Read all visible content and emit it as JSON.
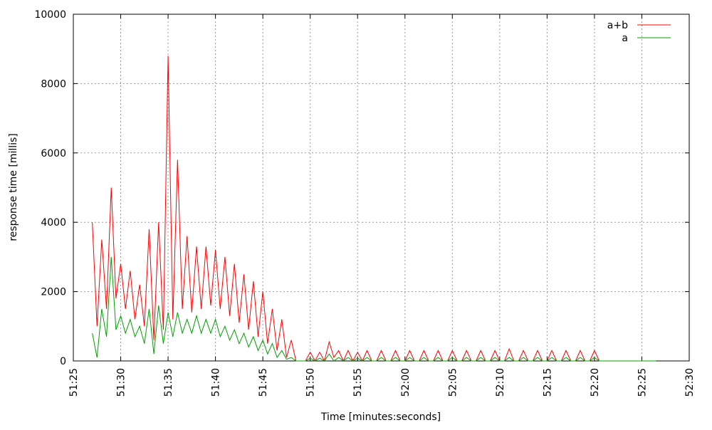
{
  "chart_data": {
    "type": "line",
    "xlabel": "Time [minutes:seconds]",
    "ylabel": "response time [millis]",
    "xlim": [
      3085,
      3150
    ],
    "xticks": [
      {
        "value": 3085,
        "label": "51:25"
      },
      {
        "value": 3090,
        "label": "51:30"
      },
      {
        "value": 3095,
        "label": "51:35"
      },
      {
        "value": 3100,
        "label": "51:40"
      },
      {
        "value": 3105,
        "label": "51:45"
      },
      {
        "value": 3110,
        "label": "51:50"
      },
      {
        "value": 3115,
        "label": "51:55"
      },
      {
        "value": 3120,
        "label": "52:00"
      },
      {
        "value": 3125,
        "label": "52:05"
      },
      {
        "value": 3130,
        "label": "52:10"
      },
      {
        "value": 3135,
        "label": "52:15"
      },
      {
        "value": 3140,
        "label": "52:20"
      },
      {
        "value": 3145,
        "label": "52:25"
      },
      {
        "value": 3150,
        "label": "52:30"
      }
    ],
    "ylim": [
      0,
      10000
    ],
    "yticks": [
      0,
      2000,
      4000,
      6000,
      8000,
      10000
    ],
    "grid": true,
    "legend": "top-right",
    "x": [
      3087,
      3087.5,
      3088,
      3088.5,
      3089,
      3089.5,
      3090,
      3090.5,
      3091,
      3091.5,
      3092,
      3092.5,
      3093,
      3093.5,
      3094,
      3094.5,
      3095,
      3095.5,
      3096,
      3096.5,
      3097,
      3097.5,
      3098,
      3098.5,
      3099,
      3099.5,
      3100,
      3100.5,
      3101,
      3101.5,
      3102,
      3102.5,
      3103,
      3103.5,
      3104,
      3104.5,
      3105,
      3105.5,
      3106,
      3106.5,
      3107,
      3107.5,
      3108,
      3108.5,
      3109,
      3109.5,
      3110,
      3110.5,
      3111,
      3111.5,
      3112,
      3112.5,
      3113,
      3113.5,
      3114,
      3114.5,
      3115,
      3115.5,
      3116,
      3116.5,
      3117,
      3117.5,
      3118,
      3118.5,
      3119,
      3119.5,
      3120,
      3120.5,
      3121,
      3121.5,
      3122,
      3122.5,
      3123,
      3123.5,
      3124,
      3124.5,
      3125,
      3125.5,
      3126,
      3126.5,
      3127,
      3127.5,
      3128,
      3128.5,
      3129,
      3129.5,
      3130,
      3130.5,
      3131,
      3131.5,
      3132,
      3132.5,
      3133,
      3133.5,
      3134,
      3134.5,
      3135,
      3135.5,
      3136,
      3136.5,
      3137,
      3137.5,
      3138,
      3138.5,
      3139,
      3139.5,
      3140,
      3140.5,
      3141,
      3141.5,
      3142,
      3142.5,
      3143,
      3143.5,
      3144,
      3144.5,
      3145,
      3145.5,
      3146,
      3146.5
    ],
    "series": [
      {
        "name": "a+b",
        "color": "#ff0000",
        "values": [
          4000,
          1000,
          3500,
          1500,
          5000,
          1800,
          2800,
          1500,
          2600,
          1200,
          2200,
          1000,
          3800,
          600,
          4000,
          900,
          8800,
          1200,
          5800,
          1500,
          3600,
          1400,
          3300,
          1500,
          3300,
          1600,
          3200,
          1500,
          3000,
          1300,
          2800,
          1100,
          2500,
          900,
          2300,
          700,
          2000,
          500,
          1500,
          300,
          1200,
          100,
          600,
          0,
          0,
          0,
          250,
          0,
          250,
          0,
          550,
          100,
          300,
          0,
          300,
          0,
          250,
          0,
          300,
          0,
          0,
          300,
          0,
          0,
          300,
          0,
          0,
          300,
          0,
          0,
          300,
          0,
          0,
          300,
          0,
          0,
          300,
          0,
          0,
          300,
          0,
          0,
          300,
          0,
          0,
          300,
          0,
          0,
          350,
          0,
          0,
          300,
          0,
          0,
          300,
          0,
          0,
          300,
          0,
          0,
          300,
          0,
          0,
          300,
          0,
          0,
          300,
          0,
          0,
          0,
          0,
          0,
          0,
          0,
          0,
          0,
          0,
          0,
          0,
          0
        ]
      },
      {
        "name": "a",
        "color": "#00a000",
        "values": [
          800,
          100,
          1500,
          700,
          3000,
          900,
          1300,
          800,
          1200,
          700,
          1000,
          500,
          1500,
          200,
          1600,
          500,
          1400,
          700,
          1400,
          800,
          1200,
          800,
          1300,
          800,
          1200,
          800,
          1200,
          700,
          1000,
          600,
          900,
          500,
          800,
          400,
          700,
          300,
          600,
          200,
          500,
          100,
          300,
          50,
          100,
          0,
          0,
          0,
          80,
          0,
          80,
          0,
          200,
          0,
          100,
          0,
          100,
          0,
          80,
          0,
          100,
          0,
          0,
          100,
          0,
          0,
          100,
          0,
          0,
          100,
          0,
          0,
          100,
          0,
          0,
          100,
          0,
          0,
          100,
          0,
          0,
          100,
          0,
          0,
          100,
          0,
          0,
          100,
          0,
          0,
          100,
          0,
          0,
          100,
          0,
          0,
          100,
          0,
          0,
          100,
          0,
          0,
          100,
          0,
          0,
          100,
          0,
          0,
          100,
          0,
          0,
          0,
          0,
          0,
          0,
          0,
          0,
          0,
          0,
          0,
          0,
          0
        ]
      }
    ]
  }
}
